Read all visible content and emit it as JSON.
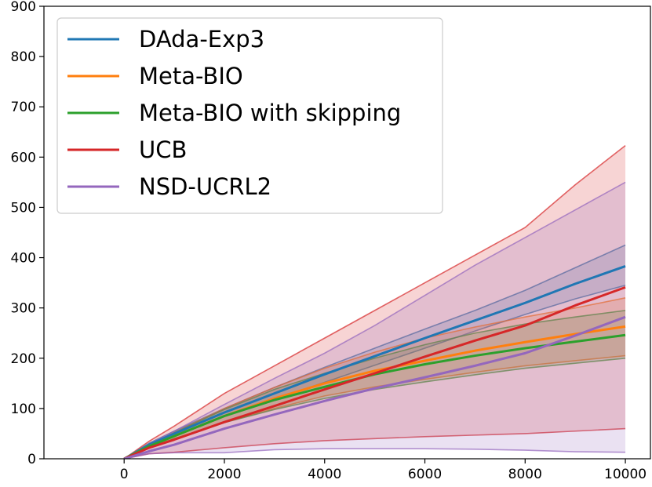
{
  "chart_data": {
    "type": "line",
    "title": "",
    "xlabel": "",
    "ylabel": "",
    "xlim": [
      -1600,
      10500
    ],
    "ylim": [
      0,
      900
    ],
    "xticks": [
      0,
      2000,
      4000,
      6000,
      8000,
      10000
    ],
    "yticks": [
      0,
      100,
      200,
      300,
      400,
      500,
      600,
      700,
      800,
      900
    ],
    "xtick_labels": [
      "0",
      "2000",
      "4000",
      "6000",
      "8000",
      "10000"
    ],
    "ytick_labels": [
      "0",
      "100",
      "200",
      "300",
      "400",
      "500",
      "600",
      "700",
      "800",
      "900"
    ],
    "grid": false,
    "legend_position": "top-left",
    "series": [
      {
        "name": "DAda-Exp3",
        "color": "#1f77b4",
        "x": [
          0,
          500,
          1000,
          2000,
          3000,
          4000,
          5000,
          6000,
          7000,
          8000,
          9000,
          10000
        ],
        "mean": [
          0,
          28,
          50,
          92,
          130,
          168,
          204,
          240,
          275,
          310,
          348,
          383
        ],
        "upper": [
          0,
          31,
          55,
          100,
          142,
          182,
          220,
          258,
          295,
          335,
          380,
          425
        ],
        "lower": [
          0,
          25,
          45,
          85,
          118,
          152,
          186,
          220,
          254,
          287,
          318,
          345
        ]
      },
      {
        "name": "Meta-BIO",
        "color": "#ff7f0e",
        "x": [
          0,
          500,
          1000,
          2000,
          3000,
          4000,
          5000,
          6000,
          7000,
          8000,
          9000,
          10000
        ],
        "mean": [
          0,
          25,
          45,
          85,
          120,
          150,
          175,
          195,
          215,
          232,
          248,
          263
        ],
        "upper": [
          0,
          28,
          52,
          100,
          142,
          180,
          212,
          240,
          262,
          282,
          300,
          320
        ],
        "lower": [
          0,
          22,
          40,
          72,
          100,
          125,
          143,
          158,
          172,
          185,
          195,
          205
        ]
      },
      {
        "name": "Meta-BIO with skipping",
        "color": "#2ca02c",
        "x": [
          0,
          500,
          1000,
          2000,
          3000,
          4000,
          5000,
          6000,
          7000,
          8000,
          9000,
          10000
        ],
        "mean": [
          0,
          25,
          45,
          85,
          117,
          143,
          168,
          188,
          205,
          220,
          233,
          246
        ],
        "upper": [
          0,
          28,
          52,
          98,
          138,
          170,
          200,
          227,
          250,
          268,
          282,
          295
        ],
        "lower": [
          0,
          22,
          40,
          72,
          98,
          120,
          138,
          153,
          167,
          180,
          190,
          200
        ]
      },
      {
        "name": "UCB",
        "color": "#d62728",
        "x": [
          0,
          500,
          1000,
          2000,
          3000,
          4000,
          5000,
          6000,
          7000,
          8000,
          9000,
          10000
        ],
        "mean": [
          0,
          22,
          38,
          73,
          105,
          138,
          170,
          203,
          235,
          265,
          305,
          341
        ],
        "upper": [
          0,
          35,
          65,
          130,
          185,
          240,
          295,
          350,
          405,
          460,
          545,
          623
        ],
        "lower": [
          0,
          10,
          13,
          22,
          30,
          36,
          40,
          44,
          47,
          50,
          55,
          60
        ]
      },
      {
        "name": "NSD-UCRL2",
        "color": "#9467bd",
        "x": [
          0,
          500,
          1000,
          2000,
          3000,
          4000,
          5000,
          6000,
          7000,
          8000,
          9000,
          10000
        ],
        "mean": [
          0,
          15,
          28,
          60,
          88,
          115,
          140,
          162,
          185,
          210,
          245,
          282
        ],
        "upper": [
          0,
          30,
          55,
          108,
          160,
          210,
          265,
          325,
          385,
          440,
          495,
          550
        ],
        "lower": [
          0,
          10,
          12,
          12,
          18,
          20,
          20,
          20,
          19,
          17,
          14,
          13
        ]
      }
    ]
  }
}
